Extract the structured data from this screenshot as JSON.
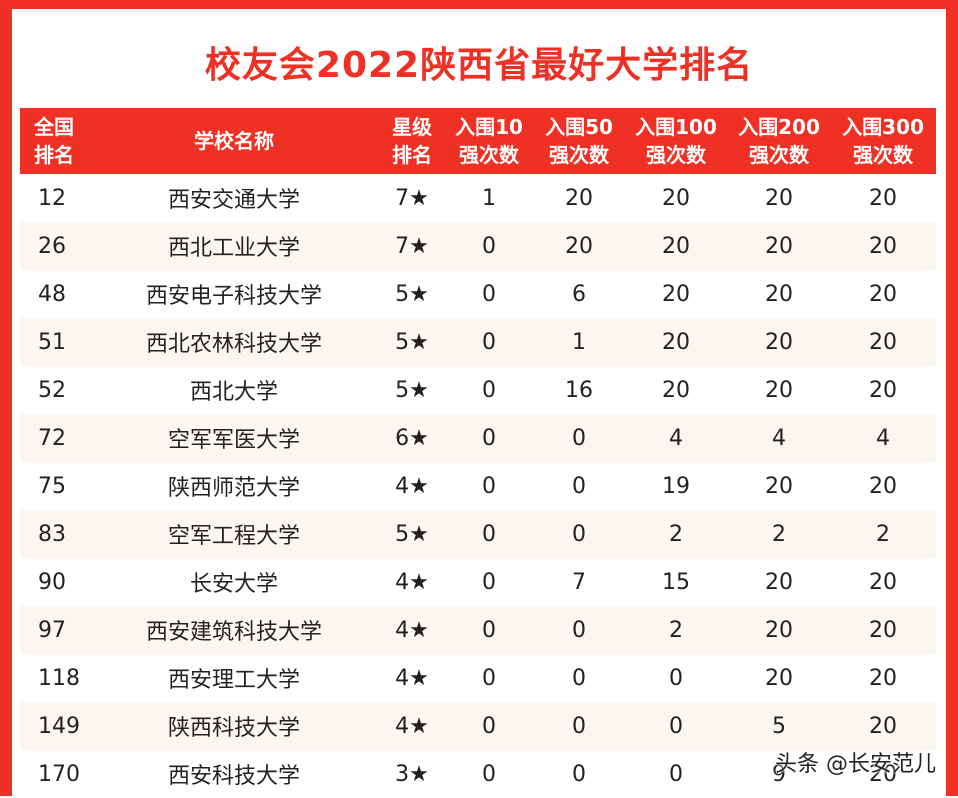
{
  "title": "校友会2022陕西省最好大学排名",
  "brand_color": "#ee3124",
  "headers": [
    [
      "全国",
      "排名"
    ],
    [
      "学校名称"
    ],
    [
      "星级",
      "排名"
    ],
    [
      "入围10",
      "强次数"
    ],
    [
      "入围50",
      "强次数"
    ],
    [
      "入围100",
      "强次数"
    ],
    [
      "入围200",
      "强次数"
    ],
    [
      "入围300",
      "强次数"
    ]
  ],
  "rows": [
    [
      "12",
      "西安交通大学",
      "7★",
      "1",
      "20",
      "20",
      "20",
      "20"
    ],
    [
      "26",
      "西北工业大学",
      "7★",
      "0",
      "20",
      "20",
      "20",
      "20"
    ],
    [
      "48",
      "西安电子科技大学",
      "5★",
      "0",
      "6",
      "20",
      "20",
      "20"
    ],
    [
      "51",
      "西北农林科技大学",
      "5★",
      "0",
      "1",
      "20",
      "20",
      "20"
    ],
    [
      "52",
      "西北大学",
      "5★",
      "0",
      "16",
      "20",
      "20",
      "20"
    ],
    [
      "72",
      "空军军医大学",
      "6★",
      "0",
      "0",
      "4",
      "4",
      "4"
    ],
    [
      "75",
      "陕西师范大学",
      "4★",
      "0",
      "0",
      "19",
      "20",
      "20"
    ],
    [
      "83",
      "空军工程大学",
      "5★",
      "0",
      "0",
      "2",
      "2",
      "2"
    ],
    [
      "90",
      "长安大学",
      "4★",
      "0",
      "7",
      "15",
      "20",
      "20"
    ],
    [
      "97",
      "西安建筑科技大学",
      "4★",
      "0",
      "0",
      "2",
      "20",
      "20"
    ],
    [
      "118",
      "西安理工大学",
      "4★",
      "0",
      "0",
      "0",
      "20",
      "20"
    ],
    [
      "149",
      "陕西科技大学",
      "4★",
      "0",
      "0",
      "0",
      "5",
      "20"
    ],
    [
      "170",
      "西安科技大学",
      "3★",
      "0",
      "0",
      "0",
      "9",
      "20"
    ]
  ],
  "watermark": "头条 @长安范儿"
}
